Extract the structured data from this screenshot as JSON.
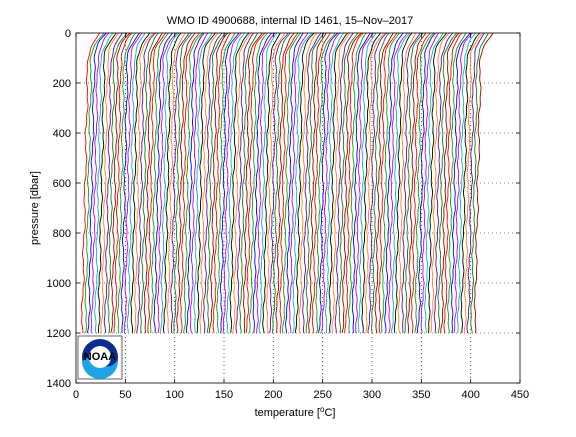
{
  "chart_data": {
    "type": "line",
    "title": "WMO ID 4900688, internal ID 1461, 15–Nov–2017",
    "xlabel": "temperature [°C]",
    "xlabel_parts": {
      "before": "temperature [",
      "sup": "o",
      "after": "C]"
    },
    "ylabel": "pressure [dbar]",
    "xlim": [
      0,
      450
    ],
    "ylim": [
      1400,
      0
    ],
    "y_reversed": true,
    "x_ticks": [
      0,
      50,
      100,
      150,
      200,
      250,
      300,
      350,
      400,
      450
    ],
    "y_ticks": [
      0,
      200,
      400,
      600,
      800,
      1000,
      1200,
      1400
    ],
    "grid": "dotted",
    "profile_style": "waterfall of temperature profiles, each offset along x, multicolored",
    "series_colors": [
      "#ff0000",
      "#00aa00",
      "#0000ff",
      "#cc00cc",
      "#00bbbb",
      "#000000",
      "#ff8800",
      "#6600cc",
      "#008800",
      "#990000"
    ],
    "profiles": {
      "count": 120,
      "first_offset": 12,
      "last_offset": 410,
      "pressure_max": 1200,
      "surface_temperature_extra": 12,
      "thermocline_depth": 120,
      "deep_temperature_drop": 6
    },
    "logo": {
      "text": "NOAA"
    }
  }
}
